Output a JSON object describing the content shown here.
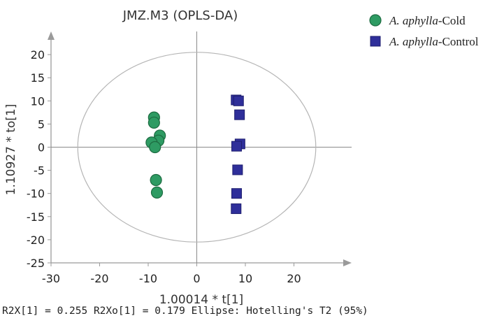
{
  "chart_data": {
    "type": "scatter",
    "title": "JMZ.M3 (OPLS-DA)",
    "xlabel": "1.00014 * t[1]",
    "ylabel": "1.10927 * to[1]",
    "footer": "R2X[1] = 0.255 R2Xo[1] = 0.179 Ellipse: Hotelling's T2 (95%)",
    "xlim": [
      -30,
      30
    ],
    "ylim": [
      -25,
      25
    ],
    "xticks": [
      -30,
      -20,
      -10,
      0,
      10,
      20
    ],
    "yticks": [
      -25,
      -20,
      -15,
      -10,
      -5,
      0,
      5,
      10,
      15,
      20
    ],
    "grid": false,
    "legend_position": "top-right",
    "ellipse": {
      "label": "Hotelling's T2 (95%)",
      "center": [
        0,
        0
      ],
      "semi_axis_x": 24.5,
      "semi_axis_y": 20.5
    },
    "series": [
      {
        "name_italic": "A. aphylla",
        "name_rest": "-Cold",
        "marker": "circle",
        "color": "#2e9b63",
        "stroke": "#1d6b41",
        "points": [
          [
            -8.8,
            6.4
          ],
          [
            -8.8,
            5.3
          ],
          [
            -7.6,
            2.5
          ],
          [
            -7.9,
            1.4
          ],
          [
            -9.3,
            1.0
          ],
          [
            -8.6,
            0.0
          ],
          [
            -8.4,
            -7.1
          ],
          [
            -8.2,
            -9.8
          ]
        ]
      },
      {
        "name_italic": "A. aphylla",
        "name_rest": "-Control",
        "marker": "square",
        "color": "#2f2f9a",
        "stroke": "#1e1e6e",
        "points": [
          [
            8.1,
            10.2
          ],
          [
            8.6,
            10.0
          ],
          [
            8.8,
            7.0
          ],
          [
            8.9,
            0.7
          ],
          [
            8.2,
            0.2
          ],
          [
            8.4,
            -4.9
          ],
          [
            8.2,
            -10.0
          ],
          [
            8.1,
            -13.3
          ]
        ]
      }
    ]
  }
}
